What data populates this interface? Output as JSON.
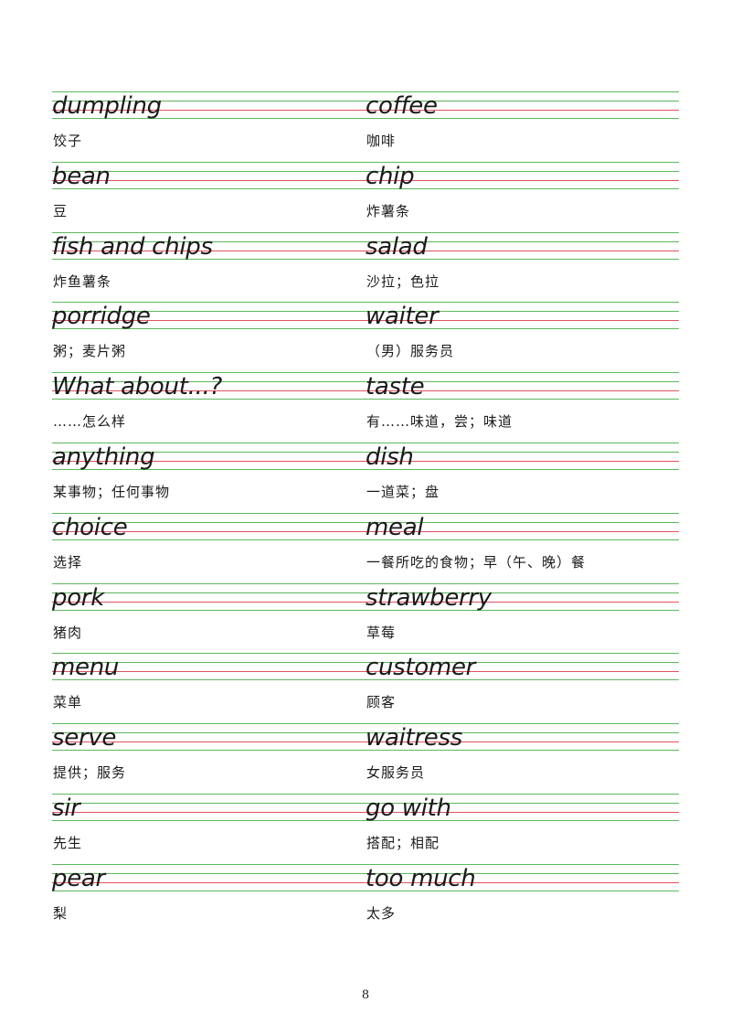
{
  "vocabulary": [
    {
      "left": {
        "word": "dumpling",
        "meaning": "饺子"
      },
      "right": {
        "word": "coffee",
        "meaning": "咖啡"
      }
    },
    {
      "left": {
        "word": "bean",
        "meaning": "豆"
      },
      "right": {
        "word": "chip",
        "meaning": "炸薯条"
      }
    },
    {
      "left": {
        "word": "fish and chips",
        "meaning": "炸鱼薯条"
      },
      "right": {
        "word": "salad",
        "meaning": "沙拉；色拉"
      }
    },
    {
      "left": {
        "word": "porridge",
        "meaning": "粥；麦片粥"
      },
      "right": {
        "word": "waiter",
        "meaning": "（男）服务员"
      }
    },
    {
      "left": {
        "word": "What about...?",
        "meaning": "……怎么样"
      },
      "right": {
        "word": "taste",
        "meaning": "有……味道，尝；味道"
      }
    },
    {
      "left": {
        "word": "anything",
        "meaning": "某事物；任何事物"
      },
      "right": {
        "word": "dish",
        "meaning": "一道菜；盘"
      }
    },
    {
      "left": {
        "word": "choice",
        "meaning": "选择"
      },
      "right": {
        "word": "meal",
        "meaning": "一餐所吃的食物；早（午、晚）餐"
      }
    },
    {
      "left": {
        "word": "pork",
        "meaning": "猪肉"
      },
      "right": {
        "word": "strawberry",
        "meaning": "草莓"
      }
    },
    {
      "left": {
        "word": "menu",
        "meaning": "菜单"
      },
      "right": {
        "word": "customer",
        "meaning": "顾客"
      }
    },
    {
      "left": {
        "word": "serve",
        "meaning": "提供；服务"
      },
      "right": {
        "word": "waitress",
        "meaning": "女服务员"
      }
    },
    {
      "left": {
        "word": "sir",
        "meaning": "先生"
      },
      "right": {
        "word": "go with",
        "meaning": "搭配；相配"
      }
    },
    {
      "left": {
        "word": "pear",
        "meaning": "梨"
      },
      "right": {
        "word": "too much",
        "meaning": "太多"
      }
    }
  ],
  "page_number": "8",
  "colors": {
    "guide_line": "#5cb85c",
    "baseline": "#e0525f",
    "text": "#1a1a1a"
  }
}
